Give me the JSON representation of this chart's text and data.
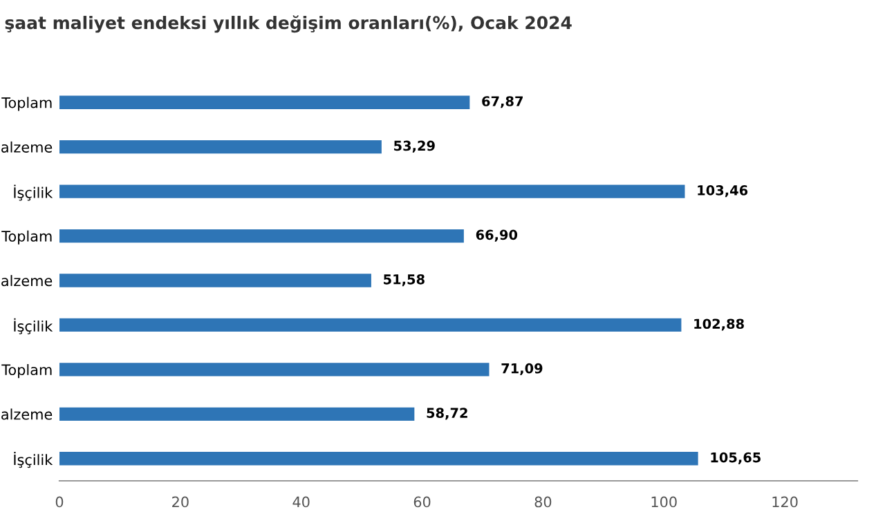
{
  "chart_data": {
    "type": "bar",
    "orientation": "horizontal",
    "title": "şaat maliyet endeksi yıllık değişim oranları(%), Ocak 2024",
    "categories": [
      "Toplam",
      "alzeme",
      "İşçilik",
      "Toplam",
      "alzeme",
      "İşçilik",
      "Toplam",
      "alzeme",
      "İşçilik"
    ],
    "values": [
      67.87,
      53.29,
      103.46,
      66.9,
      51.58,
      102.88,
      71.09,
      58.72,
      105.65
    ],
    "value_labels": [
      "67,87",
      "53,29",
      "103,46",
      "66,90",
      "51,58",
      "102,88",
      "71,09",
      "58,72",
      "105,65"
    ],
    "color": "#2e75b6",
    "xlim": [
      0,
      132
    ],
    "xticks": [
      0,
      20,
      40,
      60,
      80,
      100,
      120
    ],
    "grid": false,
    "legend": false
  }
}
